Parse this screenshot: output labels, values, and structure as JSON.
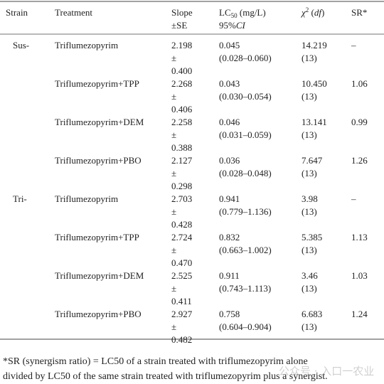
{
  "header": {
    "strain": "Strain",
    "treatment": "Treatment",
    "slope": [
      "Slope",
      "±SE"
    ],
    "lc50": {
      "main": "LC",
      "sub": "50",
      "rest": " (mg/L)",
      "line2": "95%",
      "line2_italic": "CI"
    },
    "chi": {
      "symbol": "χ",
      "sup": "2",
      "open": " (",
      "df": "df",
      "close": ")"
    },
    "sr": "SR*"
  },
  "groups": [
    {
      "strain": "Sus-",
      "rows": [
        {
          "treatment": "Triflumezopyrim",
          "slope": [
            "2.198",
            "±",
            "0.400"
          ],
          "lc50": [
            "0.045",
            "(0.028–0.060)"
          ],
          "chi": [
            "14.219",
            "(13)"
          ],
          "sr": "–"
        },
        {
          "treatment": "Triflumezopyrim+TPP",
          "slope": [
            "2.268",
            "±",
            "0.406"
          ],
          "lc50": [
            "0.043",
            "(0.030–0.054)"
          ],
          "chi": [
            "10.450",
            "(13)"
          ],
          "sr": "1.06"
        },
        {
          "treatment": "Triflumezopyrim+DEM",
          "slope": [
            "2.258",
            "±",
            "0.388"
          ],
          "lc50": [
            "0.046",
            "(0.031–0.059)"
          ],
          "chi": [
            "13.141",
            "(13)"
          ],
          "sr": "0.99"
        },
        {
          "treatment": "Triflumezopyrim+PBO",
          "slope": [
            "2.127",
            "±",
            "0.298"
          ],
          "lc50": [
            "0.036",
            "(0.028–0.048)"
          ],
          "chi": [
            "7.647",
            "(13)"
          ],
          "sr": "1.26"
        }
      ]
    },
    {
      "strain": "Tri-",
      "rows": [
        {
          "treatment": "Triflumezopyrim",
          "slope": [
            "2.703",
            "±",
            "0.428"
          ],
          "lc50": [
            "0.941",
            "(0.779–1.136)"
          ],
          "chi": [
            "3.98",
            "(13)"
          ],
          "sr": "–"
        },
        {
          "treatment": "Triflumezopyrim+TPP",
          "slope": [
            "2.724",
            "±",
            "0.470"
          ],
          "lc50": [
            "0.832",
            "(0.663–1.002)"
          ],
          "chi": [
            "5.385",
            "(13)"
          ],
          "sr": "1.13"
        },
        {
          "treatment": "Triflumezopyrim+DEM",
          "slope": [
            "2.525",
            "±",
            "0.411"
          ],
          "lc50": [
            "0.911",
            "(0.743–1.113)"
          ],
          "chi": [
            "3.46",
            "(13)"
          ],
          "sr": "1.03"
        },
        {
          "treatment": "Triflumezopyrim+PBO",
          "slope": [
            "2.927",
            "±",
            "0.482"
          ],
          "lc50": [
            "0.758",
            "(0.604–0.904)"
          ],
          "chi": [
            "6.683",
            "(13)"
          ],
          "sr": "1.24"
        }
      ]
    }
  ],
  "footnote": [
    "*SR (synergism ratio) = LC50 of a strain treated with triflumezopyrim alone",
    "divided by LC50 of the same strain treated with triflumezopyrim plus a synergist."
  ],
  "watermark": "公众号 · 入口一农业"
}
